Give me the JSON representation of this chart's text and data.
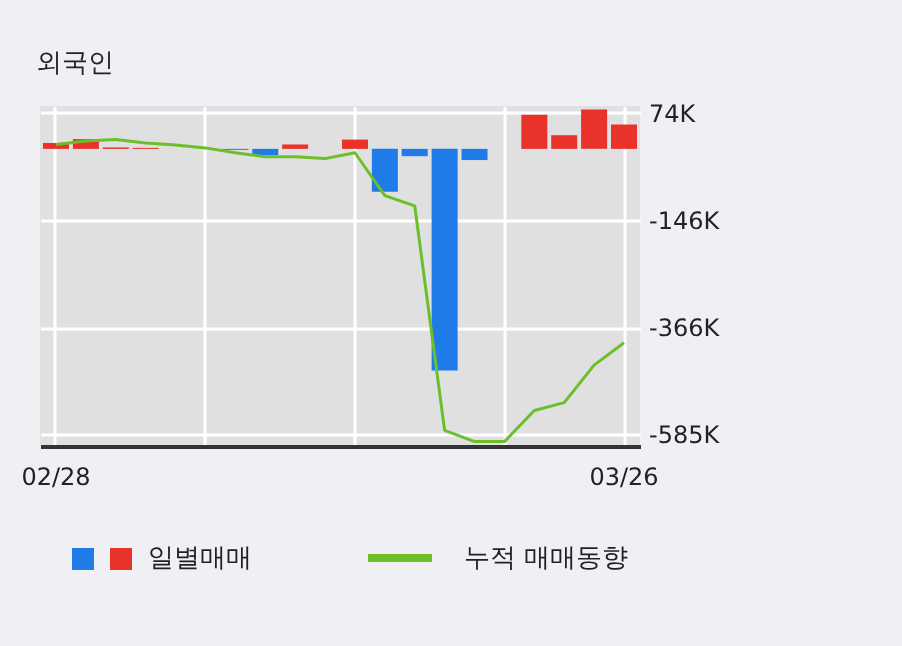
{
  "chart_data": {
    "type": "bar",
    "title": "외국인",
    "categories": [
      "02/28",
      null,
      null,
      null,
      null,
      null,
      null,
      null,
      null,
      null,
      null,
      null,
      null,
      null,
      null,
      null,
      null,
      null,
      null,
      "03/26"
    ],
    "series": [
      {
        "name": "일별매매",
        "values": [
          12,
          20,
          3,
          2,
          null,
          null,
          -2,
          -13,
          9,
          null,
          19,
          -88,
          -15,
          -455,
          -23,
          0,
          70,
          28,
          81,
          50
        ],
        "colors": [
          "#e8322a",
          "#e8322a",
          "#e8322a",
          "#e8322a",
          "#e8322a",
          "#1e7be8",
          "#1e7be8",
          "#1e7be8",
          "#e8322a",
          "#1e7be8",
          "#e8322a",
          "#1e7be8",
          "#1e7be8",
          "#1e7be8",
          "#1e7be8",
          "#e8322a",
          "#e8322a",
          "#e8322a",
          "#e8322a",
          "#e8322a"
        ]
      },
      {
        "name": "누적 매매동향",
        "type": "line",
        "color": "#6cbf2a",
        "values": [
          9,
          16,
          19,
          12,
          8,
          2,
          -8,
          -16,
          -16,
          -20,
          -8,
          -96,
          -117,
          -578,
          -601,
          -601,
          -537,
          -521,
          -444,
          -398
        ]
      }
    ],
    "ylim": [
      -610,
      88
    ],
    "yticks": [
      {
        "value": 74,
        "label": "74K"
      },
      {
        "value": -146,
        "label": "-146K"
      },
      {
        "value": -366,
        "label": "-366K"
      },
      {
        "value": -585,
        "label": "-585K"
      }
    ],
    "grid": true,
    "legend": "bottom"
  }
}
